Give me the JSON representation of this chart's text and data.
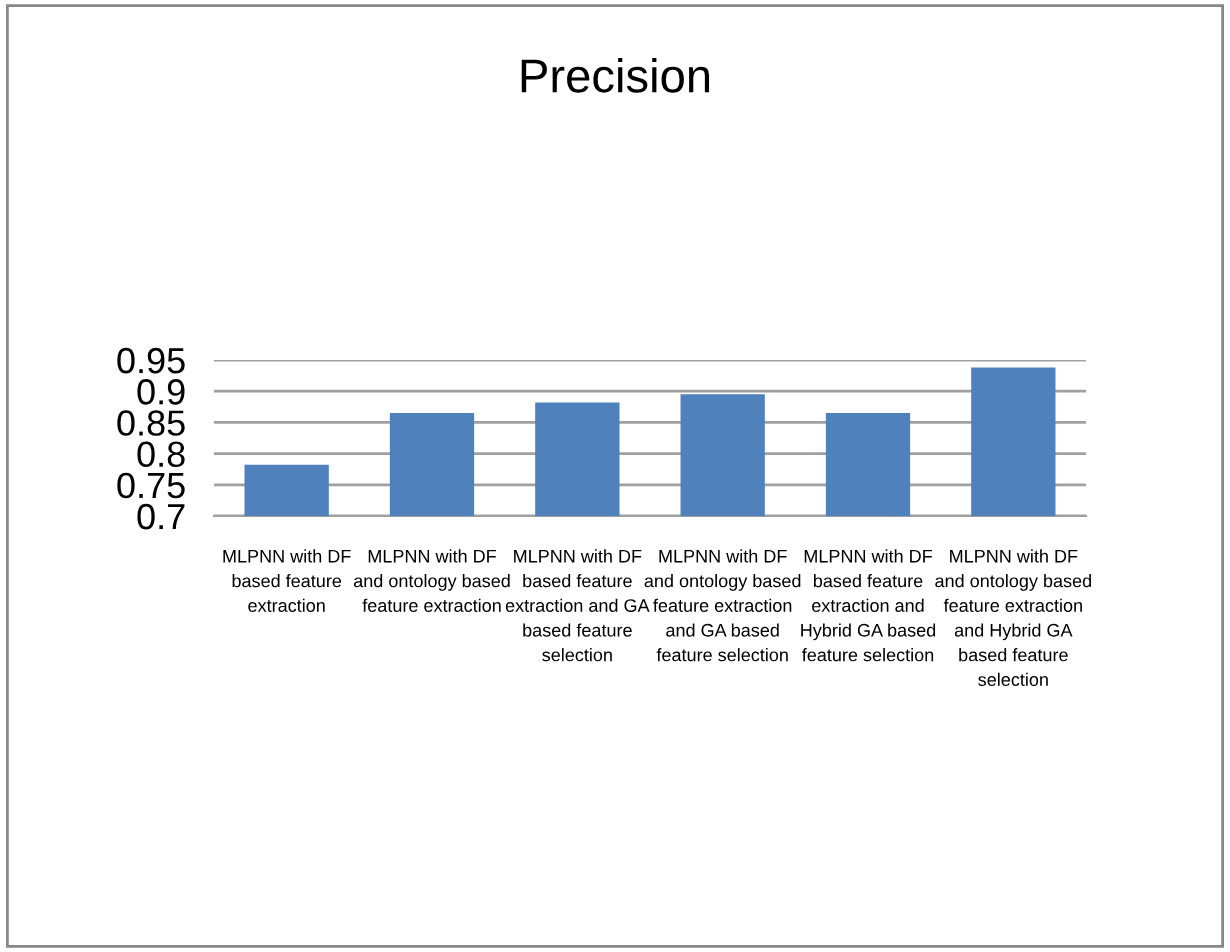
{
  "chart_data": {
    "type": "bar",
    "title": "Precision",
    "categories": [
      "MLPNN with DF\nbased feature\nextraction",
      "MLPNN with DF\nand ontology based\nfeature extraction",
      "MLPNN with DF\nbased feature\nextraction and GA\nbased feature\nselection",
      "MLPNN with DF\nand ontology based\nfeature extraction\nand GA based\nfeature selection",
      "MLPNN with DF\nbased feature\nextraction and\nHybrid GA based\nfeature selection",
      "MLPNN with DF\nand ontology based\nfeature extraction\nand Hybrid GA\nbased feature\nselection"
    ],
    "values": [
      0.782,
      0.865,
      0.882,
      0.895,
      0.865,
      0.938
    ],
    "color": "#4f81bd",
    "ylim": [
      0.7,
      0.95
    ],
    "yticks": [
      0.7,
      0.75,
      0.8,
      0.85,
      0.9,
      0.95
    ],
    "grid": "y",
    "legend": false
  }
}
